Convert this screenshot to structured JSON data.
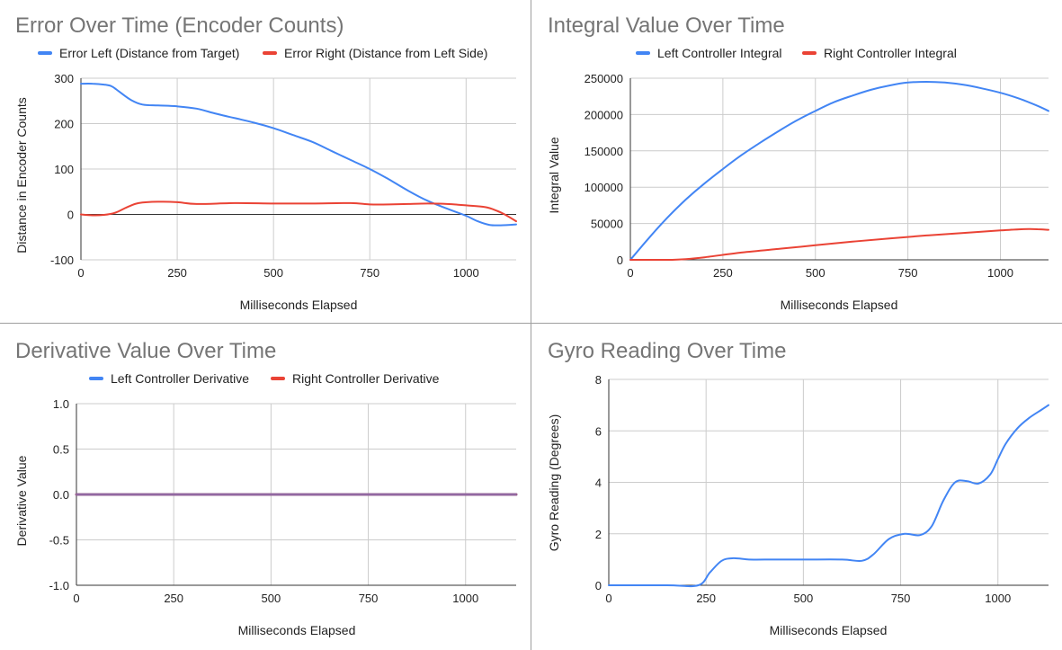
{
  "chart_data": [
    {
      "type": "line",
      "title": "Error Over Time (Encoder Counts)",
      "xlabel": "Milliseconds Elapsed",
      "ylabel": "Distance in Encoder Counts",
      "xlim": [
        0,
        1130
      ],
      "ylim": [
        -100,
        300
      ],
      "xticks": [
        0,
        250,
        500,
        750,
        1000
      ],
      "yticks": [
        -100,
        0,
        100,
        200,
        300
      ],
      "grid": true,
      "legend": "top",
      "series": [
        {
          "name": "Error Left (Distance from Target)",
          "color": "#4285f4",
          "x": [
            0,
            30,
            60,
            80,
            100,
            130,
            160,
            200,
            250,
            300,
            350,
            400,
            450,
            500,
            550,
            600,
            650,
            700,
            750,
            800,
            850,
            900,
            950,
            1000,
            1030,
            1060,
            1090,
            1130
          ],
          "y": [
            288,
            288,
            286,
            282,
            270,
            252,
            242,
            240,
            238,
            233,
            222,
            212,
            202,
            190,
            175,
            160,
            140,
            120,
            100,
            77,
            52,
            30,
            13,
            -3,
            -15,
            -23,
            -24,
            -22
          ]
        },
        {
          "name": "Error Right (Distance from Left Side)",
          "color": "#ea4335",
          "x": [
            0,
            30,
            60,
            90,
            120,
            150,
            200,
            250,
            300,
            400,
            500,
            600,
            700,
            750,
            800,
            850,
            900,
            950,
            1000,
            1050,
            1080,
            1100,
            1130
          ],
          "y": [
            0,
            -2,
            -1,
            4,
            16,
            25,
            28,
            27,
            23,
            25,
            24,
            24,
            25,
            22,
            22,
            23,
            24,
            23,
            20,
            16,
            8,
            0,
            -15
          ]
        }
      ]
    },
    {
      "type": "line",
      "title": "Integral Value Over Time",
      "xlabel": "Milliseconds Elapsed",
      "ylabel": "Integral Value",
      "xlim": [
        0,
        1130
      ],
      "ylim": [
        0,
        250000
      ],
      "xticks": [
        0,
        250,
        500,
        750,
        1000
      ],
      "yticks": [
        0,
        50000,
        100000,
        150000,
        200000,
        250000
      ],
      "grid": true,
      "legend": "top",
      "series": [
        {
          "name": "Left Controller Integral",
          "color": "#4285f4",
          "x": [
            0,
            50,
            100,
            150,
            200,
            250,
            300,
            350,
            400,
            450,
            500,
            550,
            600,
            650,
            700,
            750,
            800,
            850,
            900,
            950,
            1000,
            1050,
            1100,
            1130
          ],
          "y": [
            0,
            30000,
            58000,
            83000,
            105000,
            125000,
            144000,
            161000,
            177000,
            192000,
            205000,
            217000,
            226000,
            234000,
            240000,
            244000,
            245000,
            244000,
            241000,
            236000,
            230000,
            222000,
            212000,
            205000
          ]
        },
        {
          "name": "Right Controller Integral",
          "color": "#ea4335",
          "x": [
            0,
            100,
            150,
            200,
            300,
            400,
            500,
            600,
            700,
            800,
            900,
            1000,
            1050,
            1080,
            1100,
            1130
          ],
          "y": [
            0,
            0,
            1000,
            3500,
            10000,
            15000,
            20000,
            25000,
            29500,
            33500,
            37000,
            40500,
            42000,
            42300,
            42100,
            41300
          ]
        }
      ]
    },
    {
      "type": "line",
      "title": "Derivative Value Over Time",
      "xlabel": "Milliseconds Elapsed",
      "ylabel": "Derivative Value",
      "xlim": [
        0,
        1130
      ],
      "ylim": [
        -1.0,
        1.0
      ],
      "xticks": [
        0,
        250,
        500,
        750,
        1000
      ],
      "yticks": [
        "-1.0",
        "-0.5",
        "0.0",
        "0.5",
        "1.0"
      ],
      "grid": true,
      "legend": "top",
      "series": [
        {
          "name": "Left Controller Derivative",
          "color": "#4285f4",
          "x": [
            0,
            1130
          ],
          "y": [
            0,
            0
          ]
        },
        {
          "name": "Right Controller Derivative",
          "color": "#ea4335",
          "x": [
            0,
            1130
          ],
          "y": [
            0,
            0
          ]
        }
      ]
    },
    {
      "type": "line",
      "title": "Gyro Reading Over Time",
      "xlabel": "Milliseconds Elapsed",
      "ylabel": "Gyro Reading (Degrees)",
      "xlim": [
        0,
        1130
      ],
      "ylim": [
        0,
        8
      ],
      "xticks": [
        0,
        250,
        500,
        750,
        1000
      ],
      "yticks": [
        0,
        2,
        4,
        6,
        8
      ],
      "grid": true,
      "legend": "none",
      "series": [
        {
          "color": "#4285f4",
          "x": [
            0,
            150,
            230,
            260,
            290,
            320,
            360,
            400,
            500,
            600,
            650,
            680,
            720,
            760,
            800,
            830,
            860,
            890,
            920,
            950,
            980,
            1000,
            1020,
            1050,
            1080,
            1110,
            1130
          ],
          "y": [
            0,
            0,
            0,
            0.5,
            0.95,
            1.05,
            1.0,
            1.0,
            1.0,
            1.0,
            0.95,
            1.2,
            1.8,
            2.0,
            1.95,
            2.3,
            3.3,
            4.0,
            4.05,
            3.95,
            4.3,
            4.9,
            5.5,
            6.1,
            6.5,
            6.8,
            7.0
          ]
        }
      ]
    }
  ]
}
